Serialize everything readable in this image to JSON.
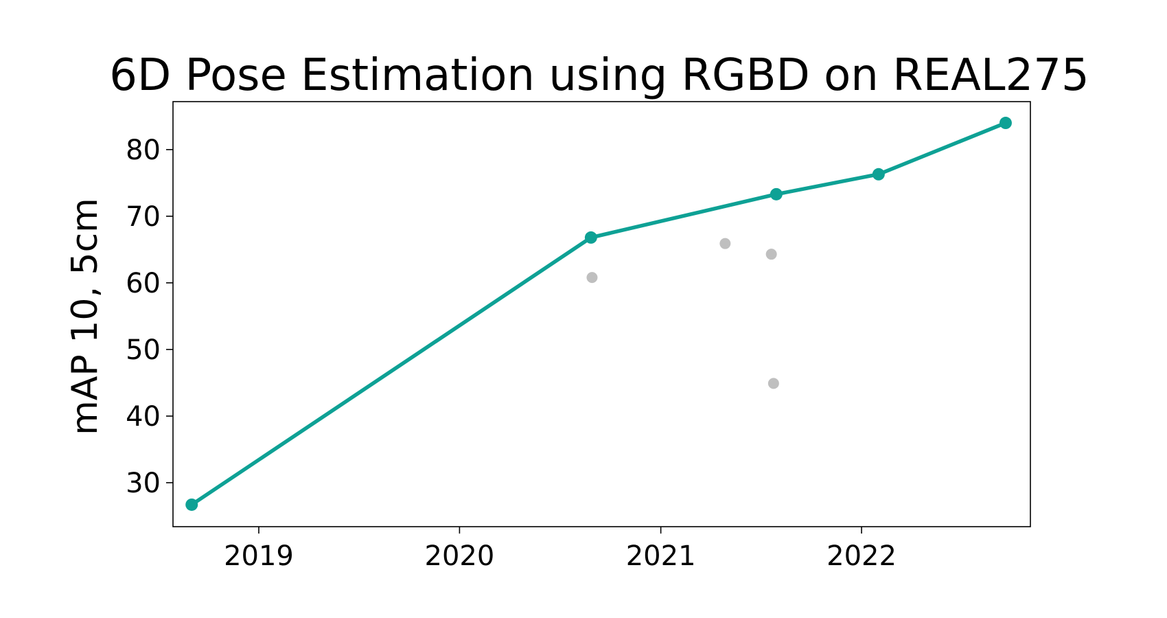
{
  "chart_data": {
    "type": "line",
    "title": "6D Pose Estimation using RGBD on REAL275",
    "xlabel": "",
    "ylabel": "mAP 10, 5cm",
    "x_axis_type": "date",
    "xlim": [
      "2018-07-29",
      "2022-11-04"
    ],
    "ylim": [
      23.4,
      87.2
    ],
    "xticks": [
      "2019",
      "2020",
      "2021",
      "2022"
    ],
    "yticks": [
      30,
      40,
      50,
      60,
      70,
      80
    ],
    "grid": false,
    "legend": "none",
    "series": [
      {
        "role": "state-of-the-art",
        "color": "#0ea195",
        "points": [
          {
            "x": "2018-09-01",
            "y": 26.7
          },
          {
            "x": "2020-08-27",
            "y": 66.8
          },
          {
            "x": "2021-07-30",
            "y": 73.3
          },
          {
            "x": "2022-02-01",
            "y": 76.3
          },
          {
            "x": "2022-09-20",
            "y": 84.0
          }
        ]
      },
      {
        "role": "other-methods",
        "color": "#bfbfbf",
        "points": [
          {
            "x": "2020-08-29",
            "y": 60.8
          },
          {
            "x": "2021-04-28",
            "y": 65.9
          },
          {
            "x": "2021-07-21",
            "y": 64.3
          },
          {
            "x": "2021-07-25",
            "y": 44.9
          }
        ]
      }
    ]
  }
}
